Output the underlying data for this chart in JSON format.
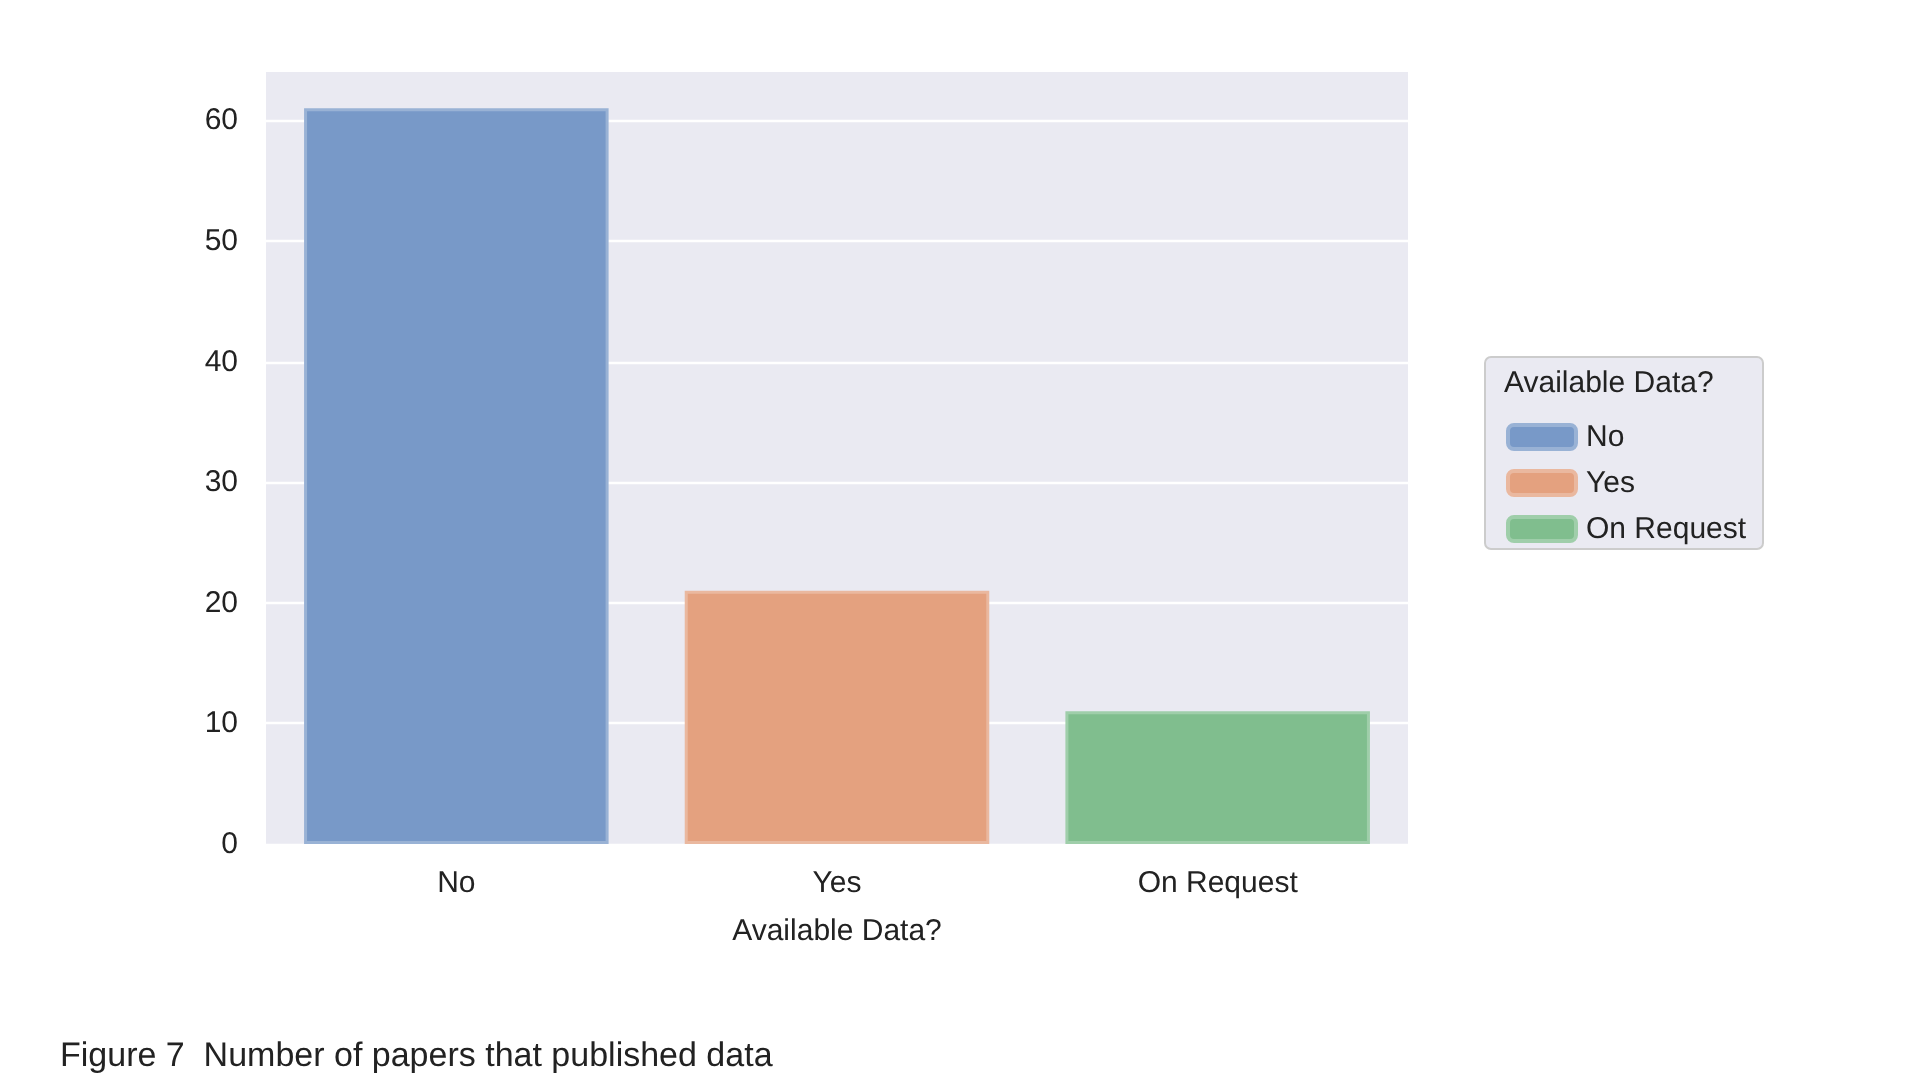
{
  "chart_data": {
    "type": "bar",
    "xlabel": "Available Data?",
    "legend_title": "Available Data?",
    "categories": [
      "No",
      "Yes",
      "On Request"
    ],
    "series": [
      {
        "name": "No",
        "color": "#7899c8",
        "values": [
          61,
          null,
          null
        ]
      },
      {
        "name": "Yes",
        "color": "#e4a17f",
        "values": [
          null,
          21,
          null
        ]
      },
      {
        "name": "On Request",
        "color": "#80be8e",
        "values": [
          null,
          null,
          11
        ]
      }
    ],
    "stacked": true,
    "ylim": [
      0,
      64
    ],
    "yticks": [
      0,
      10,
      20,
      30,
      40,
      50,
      60
    ],
    "grid": "y",
    "legend": "right",
    "annotations": [
      "Figure 7  Number of papers that published data"
    ]
  }
}
